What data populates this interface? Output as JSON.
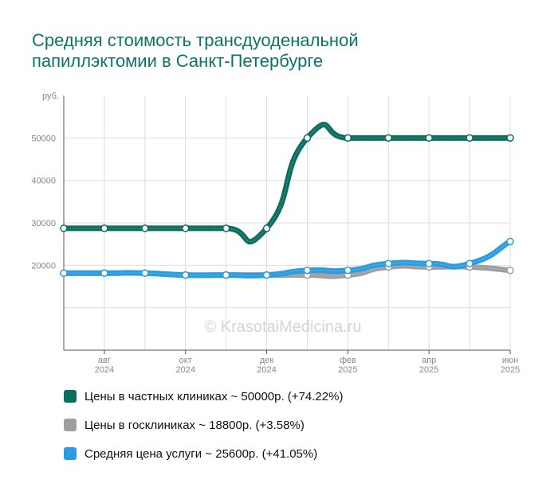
{
  "title_line1": "Средняя стоимость трансдуоденальной",
  "title_line2": "папиллэктомии в Санкт-Петербурге",
  "watermark": "© KrasotaiMedicina.ru",
  "chart_data": {
    "type": "line",
    "ylabel": "руб.",
    "ylim": [
      0,
      60000
    ],
    "yticks": [
      10000,
      20000,
      30000,
      40000,
      50000
    ],
    "ytick_labels": [
      "",
      "20000",
      "30000",
      "40000",
      "50000"
    ],
    "x": [
      "2024-07",
      "2024-08",
      "2024-09",
      "2024-10",
      "2024-11",
      "2024-12",
      "2025-01",
      "2025-02",
      "2025-03",
      "2025-04",
      "2025-05",
      "2025-06"
    ],
    "x_tick_labels": [
      {
        "index": 1,
        "month": "авг",
        "year": "2024"
      },
      {
        "index": 3,
        "month": "окт",
        "year": "2024"
      },
      {
        "index": 5,
        "month": "дек",
        "year": "2024"
      },
      {
        "index": 7,
        "month": "фев",
        "year": "2025"
      },
      {
        "index": 9,
        "month": "апр",
        "year": "2025"
      },
      {
        "index": 11,
        "month": "июн",
        "year": "2025"
      }
    ],
    "grid": true,
    "legend_position": "bottom",
    "series": [
      {
        "name": "Цены в частных клиниках",
        "legend": "Цены в частных клиниках ~ 50000р. (+74.22%)",
        "color": "#0b6e5f",
        "values": [
          28700,
          28700,
          28700,
          28700,
          28700,
          28700,
          50000,
          50000,
          50000,
          50000,
          50000,
          50000
        ]
      },
      {
        "name": "Цены в госклиниках",
        "legend": "Цены в госклиниках ~ 18800р. (+3.58%)",
        "color": "#9e9e9e",
        "values": [
          18150,
          18150,
          18150,
          17700,
          17700,
          17700,
          17700,
          17700,
          19600,
          19600,
          19600,
          18800
        ]
      },
      {
        "name": "Средняя цена услуги",
        "legend": "Средняя цена услуги ~ 25600р. (+41.05%)",
        "color": "#2a9de0",
        "values": [
          18150,
          18150,
          18150,
          17700,
          17700,
          17700,
          18800,
          18800,
          20400,
          20400,
          20400,
          25600
        ]
      }
    ]
  }
}
